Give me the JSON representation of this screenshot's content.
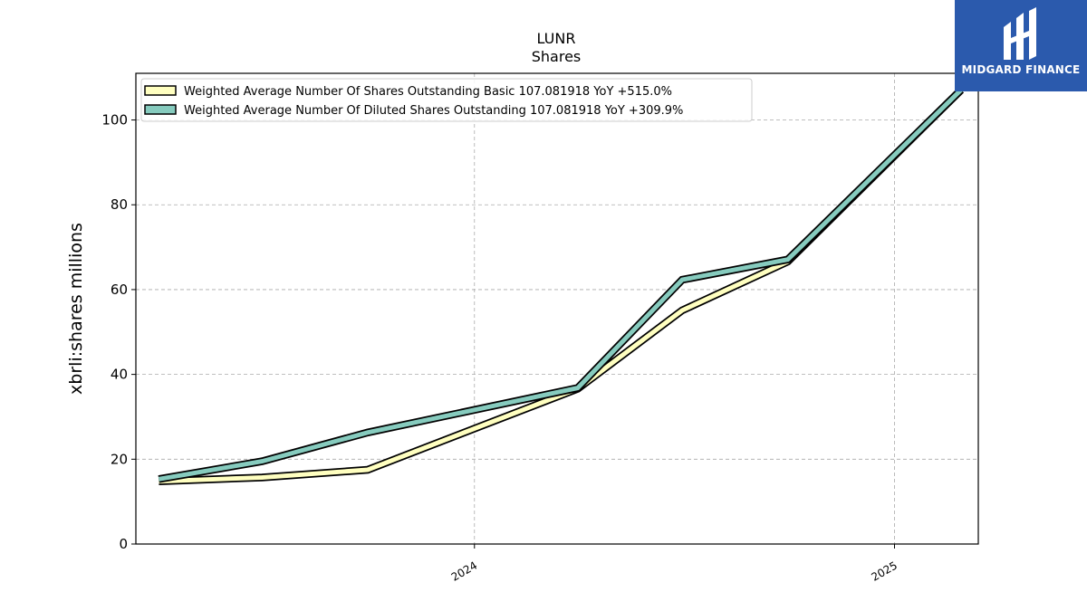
{
  "chart_data": {
    "type": "line",
    "title": "LUNR",
    "subtitle": "Shares",
    "ylabel": "xbrli:shares millions",
    "xlabel": "",
    "ylim": [
      0,
      111
    ],
    "yticks": [
      0,
      20,
      40,
      60,
      80,
      100
    ],
    "xlim": [
      "2023-03-12",
      "2025-03-15"
    ],
    "xticks": [
      {
        "date": "2024-01-01",
        "label": "2024"
      },
      {
        "date": "2025-01-01",
        "label": "2025"
      }
    ],
    "grid": true,
    "legend_position": "top-left",
    "x": [
      "2023-04-01",
      "2023-06-30",
      "2023-09-30",
      "2024-03-31",
      "2024-06-30",
      "2024-09-30",
      "2025-02-28"
    ],
    "series": [
      {
        "name": "Weighted Average Number Of Shares Outstanding Basic  107.081918 YoY +515.0%",
        "color": "#ffffc0",
        "values": [
          14.8,
          15.7,
          17.5,
          36.6,
          55.1,
          66.6,
          107.1
        ]
      },
      {
        "name": "Weighted Average Number Of Diluted Shares Outstanding  107.081918 YoY +309.9%",
        "color": "#86cbbe",
        "values": [
          15.3,
          19.5,
          26.3,
          36.8,
          62.3,
          67.1,
          107.1
        ]
      }
    ]
  },
  "logo": {
    "text": "MIDGARD FINANCE",
    "background": "#2b5aad"
  }
}
